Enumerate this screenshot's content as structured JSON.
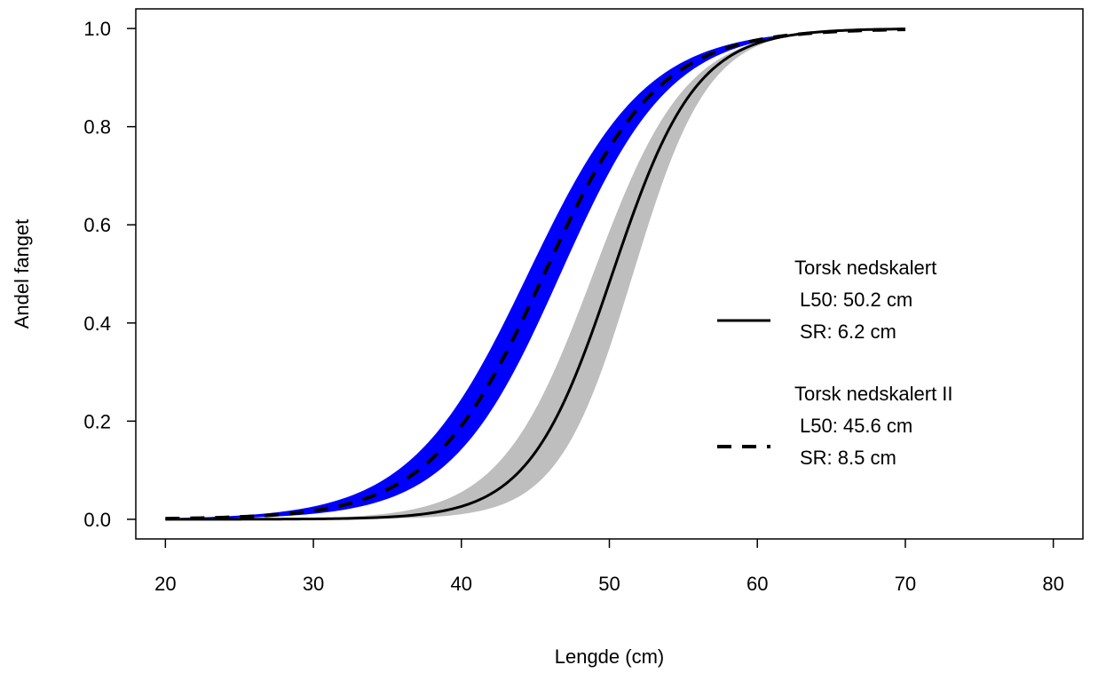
{
  "chart_data": {
    "type": "line",
    "title": "",
    "xlabel": "Lengde (cm)",
    "ylabel": "Andel fanget",
    "xlim": [
      18,
      82
    ],
    "ylim": [
      -0.04,
      1.04
    ],
    "xticks": [
      20,
      30,
      40,
      50,
      60,
      70,
      80
    ],
    "yticks": [
      0.0,
      0.2,
      0.4,
      0.6,
      0.8,
      1.0
    ],
    "xtick_labels": [
      "20",
      "30",
      "40",
      "50",
      "60",
      "70",
      "80"
    ],
    "ytick_labels": [
      "0.0",
      "0.2",
      "0.4",
      "0.6",
      "0.8",
      "1.0"
    ],
    "x_range": [
      20,
      70
    ],
    "grid": false,
    "legend_position": "right",
    "series": [
      {
        "name": "Torsk nedskalert",
        "legend_lines": [
          "Torsk nedskalert",
          "L50: 50.2 cm",
          "SR: 6.2 cm"
        ],
        "model": "logistic",
        "l50": 50.2,
        "sr": 6.2,
        "line_style": "solid",
        "line_color": "#000000",
        "band_color": "#bebebe",
        "band_l50": [
          48.9,
          51.6
        ],
        "band_sr": [
          6.9,
          5.6
        ]
      },
      {
        "name": "Torsk nedskalert II",
        "legend_lines": [
          "Torsk nedskalert II",
          "L50: 45.6 cm",
          "SR: 8.5 cm"
        ],
        "model": "logistic",
        "l50": 45.6,
        "sr": 8.5,
        "line_style": "dashed",
        "line_color": "#000000",
        "band_color": "#0000ff",
        "band_l50": [
          44.5,
          46.7
        ],
        "band_sr": [
          8.8,
          8.2
        ]
      }
    ]
  }
}
